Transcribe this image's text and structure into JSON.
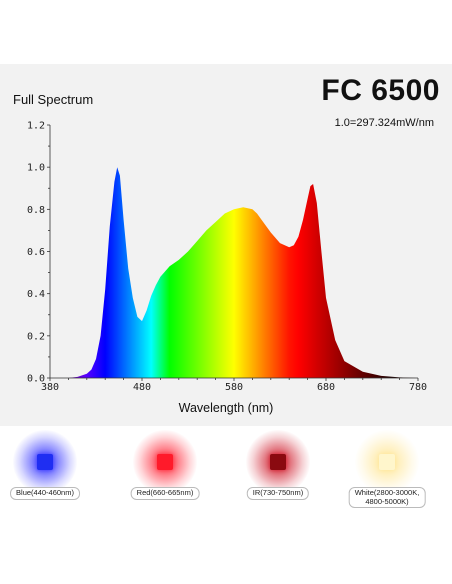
{
  "header": {
    "title": "FC 6500",
    "subtitle": "Full Spectrum",
    "scale_note": "1.0=297.324mW/nm"
  },
  "chart_data": {
    "type": "area",
    "title": "FC 6500",
    "subtitle": "Full Spectrum",
    "xlabel": "Wavelength (nm)",
    "ylabel": "",
    "xlim": [
      380,
      780
    ],
    "ylim": [
      0,
      1.2
    ],
    "xticks": [
      "380",
      "480",
      "580",
      "680",
      "780"
    ],
    "yticks": [
      "0.0",
      "0.2",
      "0.4",
      "0.6",
      "0.8",
      "1.0",
      "1.2"
    ],
    "grid": false,
    "fill": "wavelength-colored gradient",
    "series": [
      {
        "x": [
          380,
          400,
          410,
          420,
          425,
          430,
          435,
          440,
          445,
          450,
          453,
          456,
          460,
          465,
          470,
          475,
          480,
          485,
          490,
          495,
          500,
          510,
          520,
          530,
          540,
          550,
          560,
          570,
          580,
          590,
          600,
          605,
          610,
          620,
          630,
          640,
          645,
          650,
          655,
          660,
          663,
          666,
          670,
          675,
          680,
          690,
          700,
          720,
          740,
          760,
          780
        ],
        "values": [
          0.0,
          0.0,
          0.005,
          0.02,
          0.04,
          0.09,
          0.2,
          0.42,
          0.72,
          0.93,
          1.0,
          0.96,
          0.75,
          0.52,
          0.38,
          0.29,
          0.27,
          0.32,
          0.39,
          0.44,
          0.48,
          0.53,
          0.56,
          0.6,
          0.65,
          0.7,
          0.74,
          0.78,
          0.8,
          0.81,
          0.8,
          0.78,
          0.75,
          0.69,
          0.64,
          0.62,
          0.63,
          0.67,
          0.75,
          0.85,
          0.91,
          0.92,
          0.83,
          0.6,
          0.38,
          0.18,
          0.08,
          0.03,
          0.01,
          0.003,
          0.0
        ]
      }
    ]
  },
  "legend": {
    "items": [
      {
        "label": "Blue(440-460nm)",
        "color": "#1f2ef2",
        "glow": "#3b3bff"
      },
      {
        "label": "Red(660-665nm)",
        "color": "#ff1a2a",
        "glow": "#ff3040"
      },
      {
        "label": "IR(730-750nm)",
        "color": "#8a0a10",
        "glow": "#d02030"
      },
      {
        "label": "White(2800-3000K,",
        "label2": "4800-5000K)",
        "color": "#fff6cc",
        "glow": "#ffe79a"
      }
    ]
  }
}
